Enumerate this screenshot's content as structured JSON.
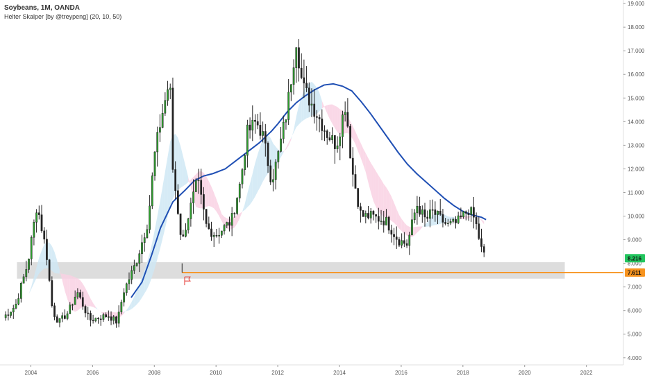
{
  "chart_data": {
    "type": "candlestick",
    "title": "Soybeans, 1M, OANDA",
    "indicator_label": "Helter Skalper [by @treypeng] (20, 10, 50)",
    "x_range": [
      2003.0,
      2023.2
    ],
    "y_range": [
      3.7,
      19.15
    ],
    "y_ticks": [
      "4.000",
      "5.000",
      "6.000",
      "7.000",
      "8.000",
      "9.000",
      "10.000",
      "11.000",
      "12.000",
      "13.000",
      "14.000",
      "15.000",
      "16.000",
      "17.000",
      "18.000",
      "19.000"
    ],
    "x_ticks": [
      "2004",
      "2006",
      "2008",
      "2010",
      "2012",
      "2014",
      "2016",
      "2018",
      "2020",
      "2022"
    ],
    "price_tags": [
      {
        "label": "8.216",
        "value": 8.216,
        "color": "#22c55e"
      },
      {
        "label": "7.611",
        "value": 7.611,
        "color": "#f7931e"
      }
    ],
    "support_zone": {
      "from_year": 2002.9,
      "to_year": 2021.3,
      "low": 7.35,
      "high": 8.05
    },
    "horizontal_line": {
      "value": 7.611,
      "start_year": 2008.9,
      "color": "#f7931e"
    },
    "flag_marker": {
      "year": 2009.05,
      "value": 7.25
    },
    "ma_color": "#1f4fb4",
    "up_color": "#2e9e2e",
    "down_color": "#222222",
    "anchors": [
      [
        2003.1,
        5.7
      ],
      [
        2003.5,
        6.2
      ],
      [
        2003.9,
        8.0
      ],
      [
        2004.2,
        10.5
      ],
      [
        2004.5,
        8.5
      ],
      [
        2004.7,
        6.0
      ],
      [
        2004.9,
        5.5
      ],
      [
        2005.2,
        5.9
      ],
      [
        2005.5,
        6.8
      ],
      [
        2005.9,
        5.6
      ],
      [
        2006.5,
        5.8
      ],
      [
        2006.8,
        5.5
      ],
      [
        2007.0,
        6.8
      ],
      [
        2007.4,
        8.0
      ],
      [
        2007.8,
        9.8
      ],
      [
        2008.0,
        12.5
      ],
      [
        2008.2,
        14.0
      ],
      [
        2008.5,
        15.8
      ],
      [
        2008.6,
        12.0
      ],
      [
        2008.9,
        8.8
      ],
      [
        2009.0,
        9.5
      ],
      [
        2009.4,
        11.5
      ],
      [
        2009.7,
        9.5
      ],
      [
        2010.0,
        9.2
      ],
      [
        2010.5,
        9.8
      ],
      [
        2010.8,
        11.5
      ],
      [
        2011.0,
        13.5
      ],
      [
        2011.3,
        14.0
      ],
      [
        2011.5,
        13.5
      ],
      [
        2011.8,
        11.5
      ],
      [
        2012.0,
        12.5
      ],
      [
        2012.3,
        14.5
      ],
      [
        2012.6,
        17.5
      ],
      [
        2012.8,
        15.5
      ],
      [
        2013.2,
        14.5
      ],
      [
        2013.6,
        13.5
      ],
      [
        2013.9,
        13.0
      ],
      [
        2014.2,
        14.8
      ],
      [
        2014.4,
        12.0
      ],
      [
        2014.7,
        10.0
      ],
      [
        2015.0,
        10.0
      ],
      [
        2015.5,
        9.8
      ],
      [
        2015.9,
        9.0
      ],
      [
        2016.2,
        8.8
      ],
      [
        2016.5,
        10.5
      ],
      [
        2016.8,
        9.8
      ],
      [
        2017.0,
        10.2
      ],
      [
        2017.5,
        9.6
      ],
      [
        2017.8,
        9.7
      ],
      [
        2018.2,
        10.3
      ],
      [
        2018.4,
        9.8
      ],
      [
        2018.6,
        8.6
      ],
      [
        2018.7,
        8.3
      ]
    ],
    "ma50": [
      [
        2007.25,
        6.55
      ],
      [
        2007.6,
        7.2
      ],
      [
        2007.9,
        8.3
      ],
      [
        2008.2,
        9.5
      ],
      [
        2008.6,
        10.6
      ],
      [
        2009.0,
        11.1
      ],
      [
        2009.3,
        11.5
      ],
      [
        2009.6,
        11.7
      ],
      [
        2009.9,
        11.8
      ],
      [
        2010.3,
        12.0
      ],
      [
        2010.7,
        12.4
      ],
      [
        2011.0,
        12.7
      ],
      [
        2011.4,
        13.1
      ],
      [
        2011.8,
        13.6
      ],
      [
        2012.0,
        13.9
      ],
      [
        2012.3,
        14.4
      ],
      [
        2012.6,
        14.8
      ],
      [
        2012.9,
        15.1
      ],
      [
        2013.2,
        15.35
      ],
      [
        2013.5,
        15.55
      ],
      [
        2013.8,
        15.6
      ],
      [
        2014.1,
        15.5
      ],
      [
        2014.4,
        15.3
      ],
      [
        2014.7,
        14.85
      ],
      [
        2015.0,
        14.35
      ],
      [
        2015.3,
        13.8
      ],
      [
        2015.6,
        13.25
      ],
      [
        2015.9,
        12.7
      ],
      [
        2016.2,
        12.2
      ],
      [
        2016.5,
        11.8
      ],
      [
        2016.8,
        11.45
      ],
      [
        2017.1,
        11.1
      ],
      [
        2017.4,
        10.75
      ],
      [
        2017.7,
        10.45
      ],
      [
        2018.0,
        10.2
      ],
      [
        2018.3,
        10.05
      ],
      [
        2018.6,
        9.95
      ],
      [
        2018.75,
        9.85
      ]
    ]
  }
}
